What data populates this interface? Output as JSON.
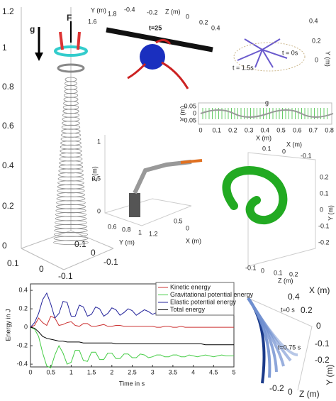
{
  "chart_data": {
    "type": "line",
    "xlabel": "Time in s",
    "ylabel": "Energy in J",
    "x": [
      0,
      0.1,
      0.2,
      0.3,
      0.4,
      0.5,
      0.6,
      0.7,
      0.8,
      0.9,
      1,
      1.1,
      1.2,
      1.3,
      1.4,
      1.5,
      1.6,
      1.7,
      1.8,
      1.9,
      2,
      2.1,
      2.2,
      2.3,
      2.4,
      2.5,
      2.6,
      2.7,
      2.8,
      2.9,
      3,
      3.1,
      3.2,
      3.3,
      3.4,
      3.5,
      3.6,
      3.7,
      3.8,
      3.9,
      4,
      4.1,
      4.2,
      4.3,
      4.4,
      4.5,
      4.6,
      4.7,
      4.8,
      4.9,
      5
    ],
    "series": [
      {
        "name": "Kinetic energy",
        "color": "#cc3333",
        "values": [
          0,
          0.02,
          0.1,
          0.05,
          0.02,
          0.12,
          0.1,
          0.02,
          0.03,
          0.05,
          0.06,
          0.02,
          0.01,
          0.04,
          0.04,
          0.01,
          0.01,
          0.02,
          0.03,
          0.01,
          0.01,
          0.02,
          0.02,
          0.01,
          0.01,
          0.01,
          0.01,
          0.01,
          0.01,
          0.01,
          0.01,
          0,
          0,
          0.01,
          0.01,
          0,
          0,
          0.01,
          0,
          0,
          0,
          0,
          0,
          0,
          0,
          0,
          0,
          0,
          0,
          0,
          0
        ]
      },
      {
        "name": "Gravitational potential energy",
        "color": "#44cc44",
        "values": [
          0,
          -0.02,
          -0.1,
          -0.28,
          -0.42,
          -0.44,
          -0.3,
          -0.2,
          -0.28,
          -0.4,
          -0.38,
          -0.25,
          -0.25,
          -0.36,
          -0.37,
          -0.27,
          -0.27,
          -0.35,
          -0.35,
          -0.28,
          -0.28,
          -0.34,
          -0.34,
          -0.29,
          -0.29,
          -0.33,
          -0.33,
          -0.29,
          -0.3,
          -0.33,
          -0.32,
          -0.3,
          -0.3,
          -0.32,
          -0.32,
          -0.3,
          -0.3,
          -0.32,
          -0.32,
          -0.3,
          -0.31,
          -0.32,
          -0.31,
          -0.3,
          -0.31,
          -0.32,
          -0.31,
          -0.3,
          -0.31,
          -0.31,
          -0.31
        ]
      },
      {
        "name": "Elastic potential energy",
        "color": "#22229a",
        "values": [
          0,
          0.05,
          0.15,
          0.3,
          0.37,
          0.25,
          0.1,
          0.15,
          0.28,
          0.27,
          0.12,
          0.12,
          0.24,
          0.22,
          0.12,
          0.14,
          0.22,
          0.2,
          0.12,
          0.15,
          0.21,
          0.19,
          0.13,
          0.16,
          0.2,
          0.18,
          0.13,
          0.16,
          0.19,
          0.17,
          0.14,
          0.16,
          0.18,
          0.17,
          0.14,
          0.16,
          0.18,
          0.16,
          0.14,
          0.16,
          0.17,
          0.16,
          0.15,
          0.16,
          0.17,
          0.16,
          0.15,
          0.16,
          0.16,
          0.15,
          0.15
        ]
      },
      {
        "name": "Total energy",
        "color": "#000000",
        "values": [
          0,
          -0.01,
          -0.05,
          -0.1,
          -0.12,
          -0.13,
          -0.14,
          -0.15,
          -0.15,
          -0.16,
          -0.16,
          -0.16,
          -0.16,
          -0.17,
          -0.17,
          -0.17,
          -0.17,
          -0.17,
          -0.17,
          -0.17,
          -0.17,
          -0.18,
          -0.18,
          -0.18,
          -0.18,
          -0.18,
          -0.18,
          -0.18,
          -0.18,
          -0.18,
          -0.18,
          -0.18,
          -0.18,
          -0.18,
          -0.18,
          -0.18,
          -0.18,
          -0.18,
          -0.18,
          -0.18,
          -0.18,
          -0.18,
          -0.18,
          -0.19,
          -0.19,
          -0.19,
          -0.19,
          -0.19,
          -0.19,
          -0.19,
          -0.19
        ]
      }
    ],
    "xlim": [
      0,
      5
    ],
    "xticks": [
      0,
      0.5,
      1,
      1.5,
      2,
      2.5,
      3,
      3.5,
      4,
      4.5,
      5
    ],
    "ylim": [
      -0.43,
      0.47
    ],
    "yticks": [
      -0.4,
      -0.2,
      0,
      0.2,
      0.4
    ],
    "legend": "top-right"
  },
  "spring_plot": {
    "z_ticks": [
      "0",
      "0.2",
      "0.4",
      "0.6",
      "0.8",
      "1",
      "1.2"
    ],
    "base_ticks": [
      "0.1",
      "0",
      "-0.1",
      "0.1",
      "0",
      "-0.1"
    ],
    "labels": [
      "g",
      "F"
    ]
  },
  "rotor_plot": {
    "labels": [
      "Y (m)",
      "1.6",
      "1.8",
      "-0.4",
      "-0.2",
      "Z (m)",
      "0",
      "0.2",
      "0.4",
      "t=25"
    ]
  },
  "spider_plot": {
    "labels": [
      "0.4",
      "0.2",
      "0",
      "Y (m)",
      "t = 0s",
      "t = 1.5s"
    ]
  },
  "strip_plot": {
    "y_label": "Y (m)",
    "y_ticks": [
      "0.05",
      "0",
      "-0.05"
    ],
    "x_ticks": [
      "0",
      "0.1",
      "0.2",
      "0.3",
      "0.4",
      "0.5",
      "0.6",
      "0.7",
      "0.8"
    ],
    "x_label": "X (m)",
    "labels": [
      "g"
    ]
  },
  "robot_plot": {
    "labels": [
      "Z (m)",
      "1",
      "0.5",
      "0",
      "0.6",
      "0.8",
      "1",
      "1.2",
      "Y (m)",
      "0.5",
      "0",
      "X (m)"
    ]
  },
  "spiral_plot": {
    "labels": [
      "X (m)",
      "0.1",
      "0",
      "-0.1",
      "0.2",
      "0.1",
      "0",
      "-0.1",
      "-0.2",
      "Y (m)",
      "-0.1",
      "0",
      "0.1",
      "0.2",
      "Z (m)"
    ]
  },
  "fan_plot": {
    "labels": [
      "X (m)",
      "0.4",
      "0.2",
      "0",
      "t=0 s",
      "t=0.75 s",
      "-0.1",
      "-0.2",
      "Y (m)",
      "-0.2",
      "0",
      "Z (m)"
    ]
  }
}
